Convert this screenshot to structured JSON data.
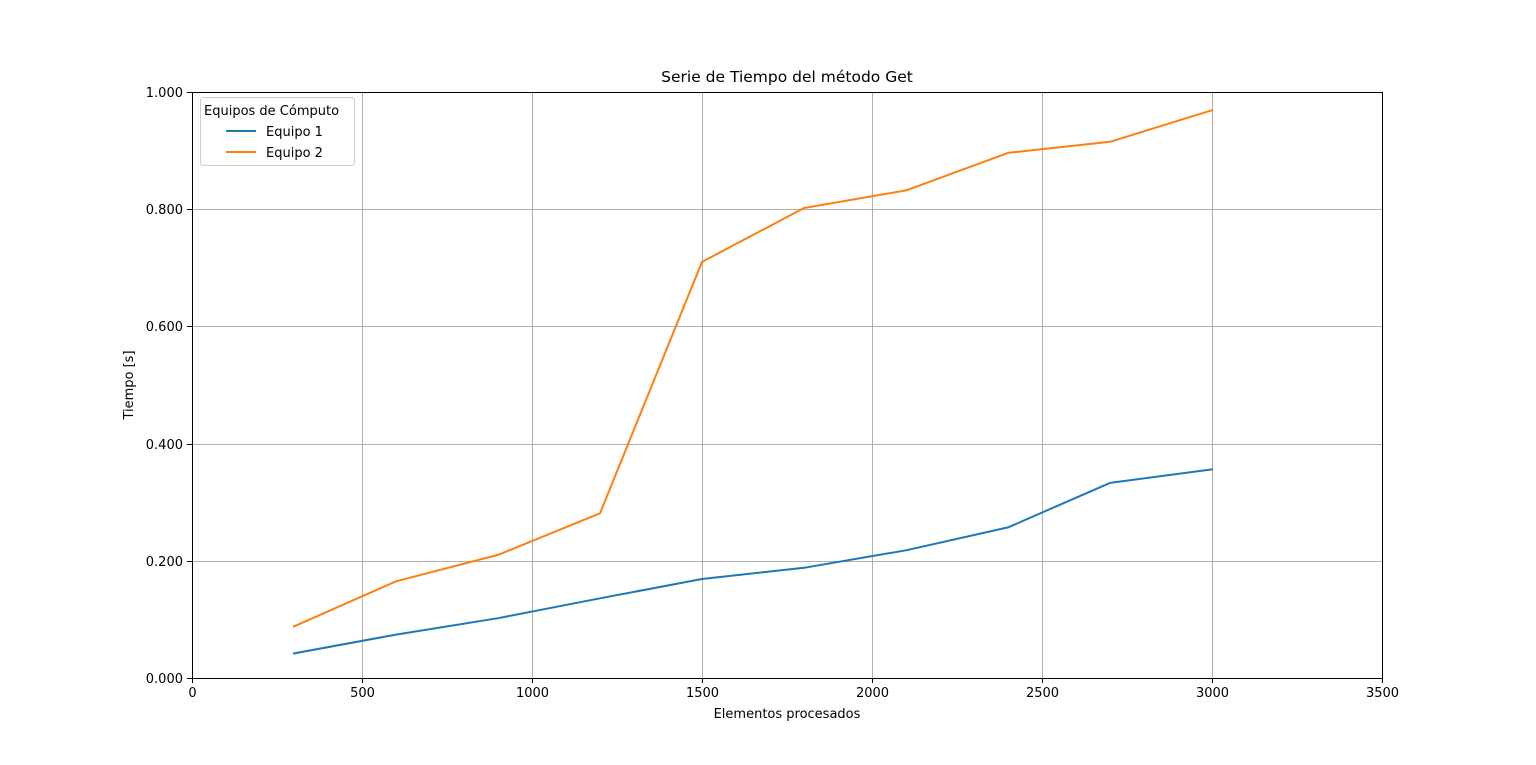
{
  "chart_data": {
    "type": "line",
    "title": "Serie de Tiempo del método Get",
    "xlabel": "Elementos procesados",
    "ylabel": "Tiempo [s]",
    "xlim": [
      0,
      3500
    ],
    "ylim": [
      0,
      1.0
    ],
    "x_ticks": [
      0,
      500,
      1000,
      1500,
      2000,
      2500,
      3000,
      3500
    ],
    "x_tick_labels": [
      "0",
      "500",
      "1000",
      "1500",
      "2000",
      "2500",
      "3000",
      "3500"
    ],
    "y_ticks": [
      0,
      0.2,
      0.4,
      0.6,
      0.8,
      1.0
    ],
    "y_tick_labels": [
      "0.000",
      "0.200",
      "0.400",
      "0.600",
      "0.800",
      "1.000"
    ],
    "grid": true,
    "legend": {
      "title": "Equipos de Cómputo",
      "placement": "top-left"
    },
    "x": [
      300,
      600,
      900,
      1200,
      1500,
      1800,
      2100,
      2400,
      2700,
      3000
    ],
    "series": [
      {
        "name": "Equipo 1",
        "color": "#1f77b4",
        "values": [
          0.042,
          0.074,
          0.102,
          0.136,
          0.169,
          0.188,
          0.218,
          0.257,
          0.333,
          0.356
        ]
      },
      {
        "name": "Equipo 2",
        "color": "#ff7f0e",
        "values": [
          0.088,
          0.165,
          0.21,
          0.281,
          0.71,
          0.802,
          0.832,
          0.896,
          0.915,
          0.969
        ]
      }
    ]
  }
}
